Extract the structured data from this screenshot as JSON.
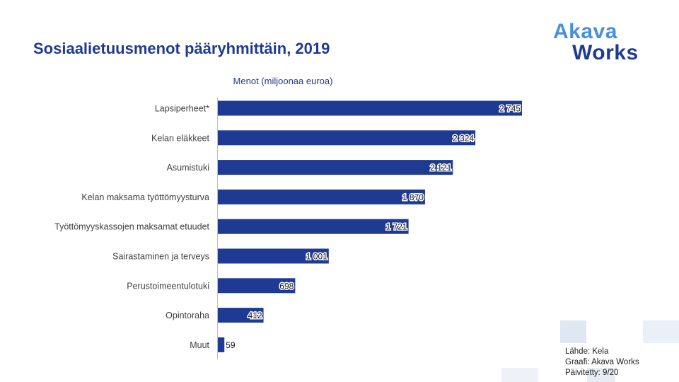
{
  "page": {
    "title": "Sosiaalietuusmenot pääryhmittäin, 2019"
  },
  "logo": {
    "line1": "Akava",
    "line2": "Works"
  },
  "footer": {
    "source": "Lähde: Kela",
    "graphic": "Graafi: Akava Works",
    "updated": "Päivitetty: 9/20"
  },
  "colors": {
    "bar": "#1f3a93",
    "title": "#1f3a93",
    "logo_light": "#4a90d9",
    "logo_dark": "#1f3a93",
    "deco": "#dfe7f2"
  },
  "chart_data": {
    "type": "bar",
    "orientation": "horizontal",
    "title": "Menot (miljoonaa euroa)",
    "categories": [
      "Lapsiperheet*",
      "Kelan eläkkeet",
      "Asumistuki",
      "Kelan maksama työttömyysturva",
      "Työttömyyskassojen maksamat etuudet",
      "Sairastaminen ja terveys",
      "Perustoimeentulotuki",
      "Opintoraha",
      "Muut"
    ],
    "values": [
      2745,
      2324,
      2121,
      1870,
      1721,
      1001,
      698,
      412,
      59
    ],
    "value_labels": [
      "2 745",
      "2 324",
      "2 121",
      "1 870",
      "1 721",
      "1 001",
      "698",
      "412",
      "59"
    ],
    "xlim": [
      0,
      2745
    ],
    "grid": false,
    "legend": "none"
  }
}
